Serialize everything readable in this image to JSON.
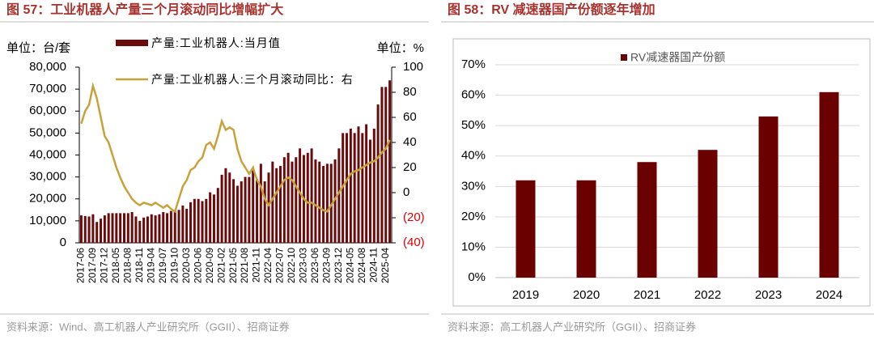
{
  "chart_data": [
    {
      "type": "combo",
      "title": "图 57：工业机器人产量三个月滚动同比增幅扩大",
      "y_unit": "单位：台/套",
      "y2_unit": "单位：%",
      "source": "资料来源：Wind、高工机器人产业研究所（GGII）、招商证券",
      "categories": [
        "2017-06",
        null,
        null,
        "2017-09",
        null,
        null,
        "2017-12",
        null,
        null,
        "2018-05",
        null,
        null,
        "2018-08",
        null,
        null,
        "2018-11",
        null,
        null,
        "2019-04",
        null,
        null,
        "2019-07",
        null,
        null,
        "2019-10",
        null,
        null,
        "2020-03",
        null,
        null,
        "2020-06",
        null,
        null,
        "2020-09",
        null,
        null,
        "2021-02",
        null,
        null,
        "2021-05",
        null,
        null,
        "2021-08",
        null,
        null,
        "2021-11",
        null,
        null,
        "2022-04",
        null,
        null,
        "2022-07",
        null,
        null,
        "2022-10",
        null,
        null,
        "2023-03",
        null,
        null,
        "2023-06",
        null,
        null,
        "2023-09",
        null,
        null,
        "2023-12",
        null,
        null,
        "2024-05",
        null,
        null,
        "2024-08",
        null,
        null,
        "2024-11",
        null,
        null,
        "2025-04",
        null
      ],
      "series": [
        {
          "name": "产量:工业机器人:当月值",
          "type": "bar",
          "color": "#6b0a0a",
          "values": [
            12500,
            12200,
            12000,
            13000,
            9500,
            11000,
            12500,
            13500,
            13500,
            13500,
            13500,
            13500,
            13500,
            14000,
            12000,
            10000,
            11500,
            12000,
            13000,
            12500,
            13000,
            14000,
            13500,
            14500,
            15000,
            15000,
            17000,
            15500,
            18500,
            20000,
            20000,
            19000,
            20000,
            23000,
            22000,
            25000,
            31000,
            34000,
            32000,
            29000,
            26000,
            28000,
            30000,
            30000,
            33000,
            29000,
            36000,
            28000,
            32000,
            37000,
            34000,
            35000,
            39000,
            41000,
            37000,
            39000,
            43000,
            40000,
            41000,
            43000,
            38000,
            37000,
            35000,
            36000,
            36000,
            38000,
            43000,
            50000,
            50000,
            52000,
            50000,
            53000,
            50000,
            54000,
            47000,
            52000,
            63000,
            71000,
            71000,
            74000
          ]
        },
        {
          "name": "产量:工业机器人:三个月滚动同比：右",
          "type": "line",
          "axis": "y2",
          "color": "#c9a13b",
          "values": [
            55,
            65,
            70,
            85,
            75,
            60,
            45,
            40,
            30,
            20,
            12,
            5,
            0,
            -5,
            -8,
            -10,
            -8,
            -9,
            -10,
            -8,
            -10,
            -12,
            -10,
            -13,
            -15,
            -5,
            5,
            10,
            18,
            20,
            25,
            28,
            38,
            40,
            35,
            45,
            57,
            50,
            52,
            50,
            35,
            25,
            20,
            15,
            20,
            10,
            5,
            -5,
            -10,
            -5,
            0,
            5,
            10,
            12,
            10,
            5,
            0,
            -5,
            -8,
            -8,
            -10,
            -12,
            -14,
            -15,
            -10,
            -5,
            0,
            5,
            10,
            15,
            17,
            18,
            20,
            22,
            24,
            25,
            28,
            32,
            35,
            42
          ]
        }
      ],
      "ylim": [
        0,
        80000
      ],
      "yticks": [
        0,
        {
          "value": 10000,
          "label": "10,000"
        },
        {
          "value": 20000,
          "label": "20,000"
        },
        {
          "value": 30000,
          "label": "30,000"
        },
        {
          "value": 40000,
          "label": "40,000"
        },
        {
          "value": 50000,
          "label": "50,000"
        },
        {
          "value": 60000,
          "label": "60,000"
        },
        {
          "value": 70000,
          "label": "70,000"
        },
        {
          "value": 80000,
          "label": "80,000"
        }
      ],
      "y2lim": [
        -40,
        100
      ],
      "y2ticks": [
        {
          "value": -40,
          "label": "(40)"
        },
        {
          "value": -20,
          "label": "(20)"
        },
        0,
        20,
        40,
        60,
        80,
        100
      ],
      "grid": false
    },
    {
      "type": "bar",
      "title": "图 58：RV 减速器国产份额逐年增加",
      "source": "资料来源：高工机器人产业研究所（GGII）、招商证券",
      "categories": [
        "2019",
        "2020",
        "2021",
        "2022",
        "2023",
        "2024"
      ],
      "series": [
        {
          "name": "RV减速器国产份额",
          "type": "bar",
          "color": "#6b0000",
          "values": [
            32,
            32,
            38,
            42,
            53,
            61
          ]
        }
      ],
      "ylim": [
        0,
        70
      ],
      "yticks": [
        {
          "value": 0,
          "label": "0%"
        },
        {
          "value": 10,
          "label": "10%"
        },
        {
          "value": 20,
          "label": "20%"
        },
        {
          "value": 30,
          "label": "30%"
        },
        {
          "value": 40,
          "label": "40%"
        },
        {
          "value": 50,
          "label": "50%"
        },
        {
          "value": 60,
          "label": "60%"
        },
        {
          "value": 70,
          "label": "70%"
        }
      ],
      "grid": true
    }
  ]
}
